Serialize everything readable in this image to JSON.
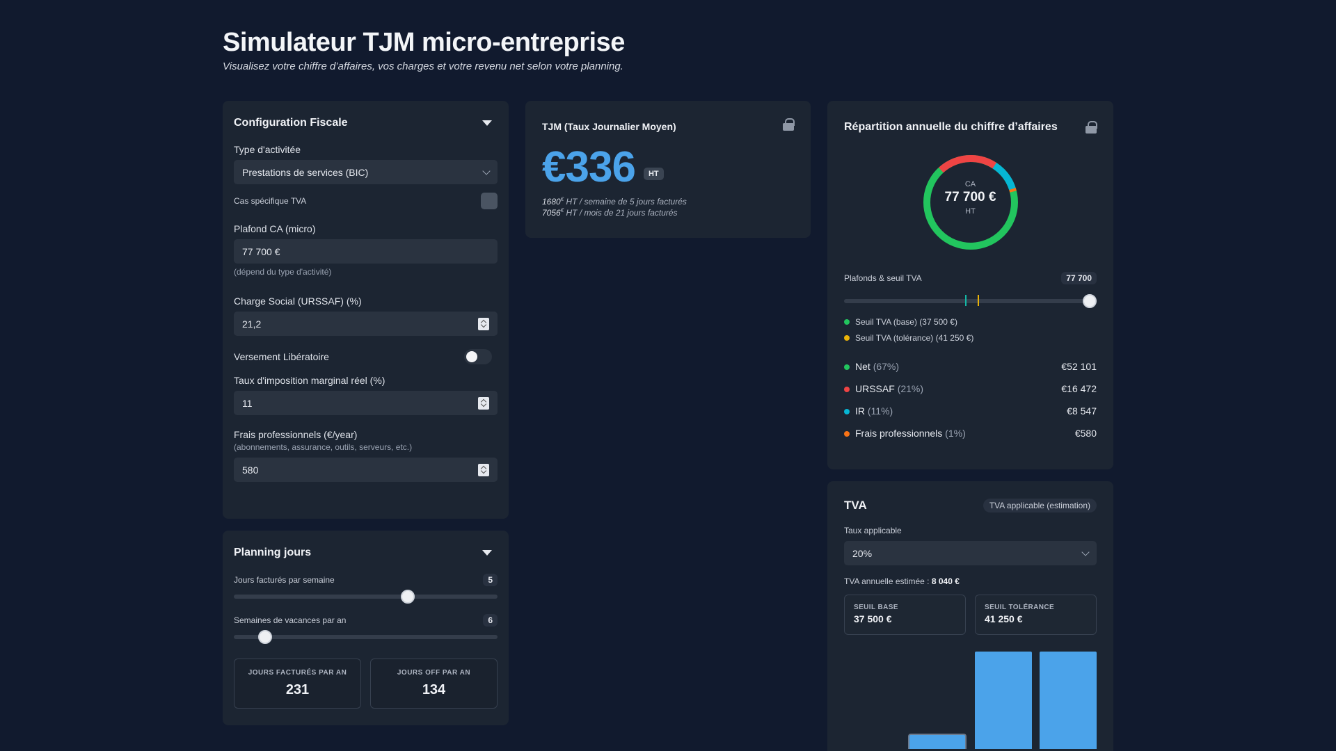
{
  "header": {
    "title": "Simulateur TJM micro-entreprise",
    "subtitle": "Visualisez votre chiffre d’affaires, vos charges et votre revenu net selon votre planning."
  },
  "config": {
    "title": "Configuration Fiscale",
    "activity_label": "Type d'activitée",
    "activity_value": "Prestations de services (BIC)",
    "tva_case_label": "Cas spécifique TVA",
    "plafond_label": "Plafond CA (micro)",
    "plafond_value": "77 700 €",
    "plafond_hint": "(dépend du type d'activité)",
    "urssaf_label": "Charge Social (URSSAF) (%)",
    "urssaf_value": "21,2",
    "versement_label": "Versement Libératoire",
    "taux_label": "Taux d'imposition marginal réel (%)",
    "taux_value": "11",
    "frais_label": "Frais professionnels (€/year)",
    "frais_hint": "(abonnements, assurance, outils, serveurs, etc.)",
    "frais_value": "580"
  },
  "planning": {
    "title": "Planning jours",
    "jours_label": "Jours facturés par semaine",
    "jours_value": "5",
    "jours_level": 0.66,
    "vacances_label": "Semaines de vacances par an",
    "vacances_value": "6",
    "vacances_level": 0.12,
    "stat1_label": "JOURS FACTURÉS PAR AN",
    "stat1_value": "231",
    "stat2_label": "JOURS OFF PAR AN",
    "stat2_value": "134"
  },
  "tjm": {
    "title": "TJM (Taux Journalier Moyen)",
    "value": "€336",
    "ht": "HT",
    "week_amount": "1680",
    "week_text": " HT / semaine de 5 jours facturés",
    "month_amount": "7056",
    "month_text": " HT / mois de 21 jours facturés",
    "currency_sup": "€"
  },
  "repartition": {
    "title": "Répartition annuelle du chiffre d’affaires",
    "donut_top": "CA",
    "donut_value": "77 700 €",
    "donut_bottom": "HT",
    "plafonds_label": "Plafonds & seuil TVA",
    "plafonds_value": "77 700",
    "seuil_base": "Seuil TVA (base) (37 500 €)",
    "seuil_tol": "Seuil TVA (tolérance) (41 250 €)",
    "rows": [
      {
        "label": "Net",
        "pct": "(67%)",
        "value": "€52 101",
        "color": "#22c55e"
      },
      {
        "label": "URSSAF",
        "pct": "(21%)",
        "value": "€16 472",
        "color": "#ef4444"
      },
      {
        "label": "IR",
        "pct": "(11%)",
        "value": "€8 547",
        "color": "#06b6d4"
      },
      {
        "label": "Frais professionnels",
        "pct": "(1%)",
        "value": "€580",
        "color": "#f97316"
      }
    ],
    "colors": {
      "base": "#14b8a6",
      "tol": "#eab308"
    }
  },
  "tva": {
    "title": "TVA",
    "pill": "TVA applicable (estimation)",
    "taux_label": "Taux applicable",
    "taux_value": "20%",
    "annual_label": "TVA annuelle estimée : ",
    "annual_value": "8 040 €",
    "seuil_base_label": "SEUIL BASE",
    "seuil_base_value": "37 500 €",
    "seuil_tol_label": "SEUIL TOLÉRANCE",
    "seuil_tol_value": "41 250 €",
    "bar_color": "#4ba3ea"
  }
}
